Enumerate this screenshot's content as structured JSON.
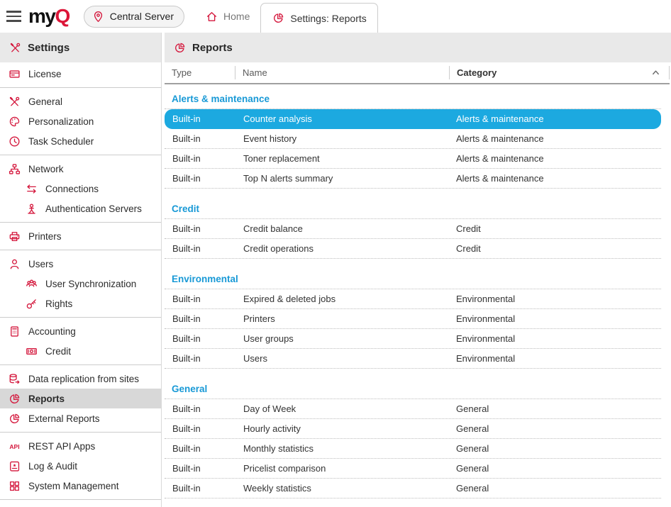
{
  "brand": {
    "logo_my": "my",
    "logo_q": "Q"
  },
  "topbar": {
    "server_button": {
      "label": "Central Server",
      "icon": "location-pin-icon"
    },
    "tabs": [
      {
        "label": "Home",
        "icon": "home-icon",
        "active": false
      },
      {
        "label": "Settings: Reports",
        "icon": "reports-icon",
        "active": true
      }
    ]
  },
  "sidebar": {
    "header": {
      "label": "Settings",
      "icon": "tools-icon"
    },
    "items": [
      {
        "label": "License",
        "icon": "license-icon",
        "indent": false,
        "selected": false,
        "divider_after": true
      },
      {
        "label": "General",
        "icon": "tools-icon",
        "indent": false,
        "selected": false,
        "divider_after": false
      },
      {
        "label": "Personalization",
        "icon": "palette-icon",
        "indent": false,
        "selected": false,
        "divider_after": false
      },
      {
        "label": "Task Scheduler",
        "icon": "clock-icon",
        "indent": false,
        "selected": false,
        "divider_after": true
      },
      {
        "label": "Network",
        "icon": "network-icon",
        "indent": false,
        "selected": false,
        "divider_after": false
      },
      {
        "label": "Connections",
        "icon": "swap-arrows-icon",
        "indent": true,
        "selected": false,
        "divider_after": false
      },
      {
        "label": "Authentication Servers",
        "icon": "person-auth-icon",
        "indent": true,
        "selected": false,
        "divider_after": true
      },
      {
        "label": "Printers",
        "icon": "printer-icon",
        "indent": false,
        "selected": false,
        "divider_after": true
      },
      {
        "label": "Users",
        "icon": "user-icon",
        "indent": false,
        "selected": false,
        "divider_after": false
      },
      {
        "label": "User Synchronization",
        "icon": "user-group-icon",
        "indent": true,
        "selected": false,
        "divider_after": false
      },
      {
        "label": "Rights",
        "icon": "key-icon",
        "indent": true,
        "selected": false,
        "divider_after": true
      },
      {
        "label": "Accounting",
        "icon": "calculator-icon",
        "indent": false,
        "selected": false,
        "divider_after": false
      },
      {
        "label": "Credit",
        "icon": "banknote-icon",
        "indent": true,
        "selected": false,
        "divider_after": true
      },
      {
        "label": "Data replication from sites",
        "icon": "database-sync-icon",
        "indent": false,
        "selected": false,
        "divider_after": false
      },
      {
        "label": "Reports",
        "icon": "reports-icon",
        "indent": false,
        "selected": true,
        "divider_after": false
      },
      {
        "label": "External Reports",
        "icon": "reports-icon",
        "indent": false,
        "selected": false,
        "divider_after": true
      },
      {
        "label": "REST API Apps",
        "icon": "api-icon",
        "indent": false,
        "selected": false,
        "divider_after": false
      },
      {
        "label": "Log & Audit",
        "icon": "scroll-icon",
        "indent": false,
        "selected": false,
        "divider_after": false
      },
      {
        "label": "System Management",
        "icon": "grid-icon",
        "indent": false,
        "selected": false,
        "divider_after": true
      }
    ]
  },
  "main": {
    "header": {
      "label": "Reports",
      "icon": "reports-icon"
    },
    "table": {
      "columns": [
        {
          "label": "Type",
          "sorted": null
        },
        {
          "label": "Name",
          "sorted": null
        },
        {
          "label": "Category",
          "sorted": "asc"
        }
      ],
      "groups": [
        {
          "label": "Alerts & maintenance",
          "rows": [
            {
              "type": "Built-in",
              "name": "Counter analysis",
              "category": "Alerts & maintenance",
              "selected": true
            },
            {
              "type": "Built-in",
              "name": "Event history",
              "category": "Alerts & maintenance",
              "selected": false
            },
            {
              "type": "Built-in",
              "name": "Toner replacement",
              "category": "Alerts & maintenance",
              "selected": false
            },
            {
              "type": "Built-in",
              "name": "Top N alerts summary",
              "category": "Alerts & maintenance",
              "selected": false
            }
          ]
        },
        {
          "label": "Credit",
          "rows": [
            {
              "type": "Built-in",
              "name": "Credit balance",
              "category": "Credit",
              "selected": false
            },
            {
              "type": "Built-in",
              "name": "Credit operations",
              "category": "Credit",
              "selected": false
            }
          ]
        },
        {
          "label": "Environmental",
          "rows": [
            {
              "type": "Built-in",
              "name": "Expired & deleted jobs",
              "category": "Environmental",
              "selected": false
            },
            {
              "type": "Built-in",
              "name": "Printers",
              "category": "Environmental",
              "selected": false
            },
            {
              "type": "Built-in",
              "name": "User groups",
              "category": "Environmental",
              "selected": false
            },
            {
              "type": "Built-in",
              "name": "Users",
              "category": "Environmental",
              "selected": false
            }
          ]
        },
        {
          "label": "General",
          "rows": [
            {
              "type": "Built-in",
              "name": "Day of Week",
              "category": "General",
              "selected": false
            },
            {
              "type": "Built-in",
              "name": "Hourly activity",
              "category": "General",
              "selected": false
            },
            {
              "type": "Built-in",
              "name": "Monthly statistics",
              "category": "General",
              "selected": false
            },
            {
              "type": "Built-in",
              "name": "Pricelist comparison",
              "category": "General",
              "selected": false
            },
            {
              "type": "Built-in",
              "name": "Weekly statistics",
              "category": "General",
              "selected": false
            }
          ]
        }
      ]
    }
  },
  "colors": {
    "brand_red": "#d4173c",
    "logo_red": "#dc1638",
    "selection_blue": "#1ca9e0",
    "group_label_blue": "#1899d6",
    "header_band_gray": "#e9e9e9",
    "sidebar_selected_gray": "#d8d8d8"
  }
}
